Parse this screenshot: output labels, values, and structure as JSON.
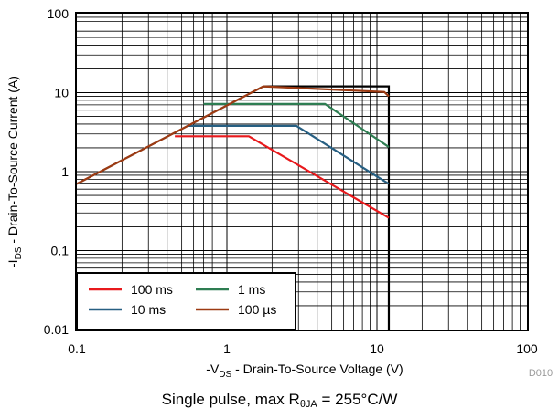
{
  "chart_data": {
    "type": "line",
    "x_scale": "log",
    "y_scale": "log",
    "xlim": [
      0.1,
      100
    ],
    "ylim": [
      0.01,
      100
    ],
    "x_ticks": [
      "0.1",
      "1",
      "10",
      "100"
    ],
    "y_ticks": [
      "0.01",
      "0.1",
      "1",
      "10",
      "100"
    ],
    "xlabel": {
      "prefix": "-V",
      "sub": "DS",
      "suffix": " - Drain-To-Source Voltage (V)"
    },
    "ylabel": {
      "prefix": "-I",
      "sub": "DS",
      "suffix": " - Drain-To-Source Current (A)"
    },
    "grid": true,
    "legend_position": "bottom-left",
    "figure_id": "D010",
    "caption": {
      "prefix": "Single pulse, max R",
      "sub": "θJA",
      "suffix": " = 255°C/W"
    },
    "series": [
      {
        "name": "100 ms",
        "color": "#e8191c",
        "x": [
          0.45,
          1.4,
          12
        ],
        "y": [
          2.8,
          2.8,
          0.26
        ]
      },
      {
        "name": "1 ms",
        "color": "#2e7d52",
        "x": [
          0.7,
          4.5,
          12
        ],
        "y": [
          7.2,
          7.2,
          2.05
        ]
      },
      {
        "name": "10 ms",
        "color": "#275f82",
        "x": [
          0.55,
          2.9,
          12
        ],
        "y": [
          3.8,
          3.8,
          0.7
        ]
      },
      {
        "name": "100 µs",
        "color": "#9c3a12",
        "x": [
          0.1,
          1.75,
          11.2,
          12
        ],
        "y": [
          0.7,
          12,
          10.2,
          9.0
        ]
      }
    ],
    "extra_lines": [
      {
        "role": "rdson-limit",
        "color": "#999999",
        "x": [
          0.1,
          1.75
        ],
        "y": [
          0.7,
          12
        ]
      },
      {
        "role": "boundary",
        "color": "#000000",
        "x": [
          1.75,
          12,
          12
        ],
        "y": [
          12,
          12,
          0.01
        ]
      }
    ]
  }
}
